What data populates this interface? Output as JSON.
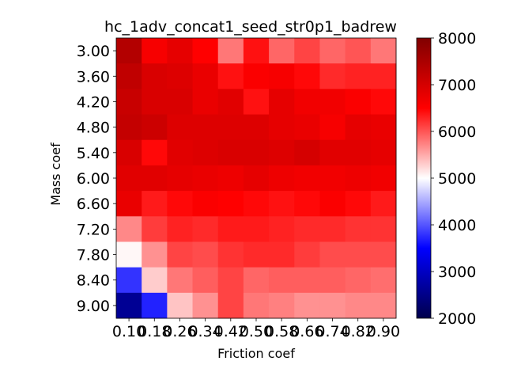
{
  "chart_data": {
    "type": "heatmap",
    "title": "hc_1adv_concat1_seed_str0p1_badrew",
    "xlabel": "Friction coef",
    "ylabel": "Mass coef",
    "x_ticks": [
      "0.10",
      "0.18",
      "0.26",
      "0.34",
      "0.42",
      "0.50",
      "0.58",
      "0.66",
      "0.74",
      "0.82",
      "0.90"
    ],
    "y_ticks": [
      "3.00",
      "3.60",
      "4.20",
      "4.80",
      "5.40",
      "6.00",
      "6.60",
      "7.20",
      "7.80",
      "8.40",
      "9.00"
    ],
    "colorbar": {
      "colormap": "seismic",
      "vmin": 2000,
      "vmax": 8000,
      "ticks": [
        "2000",
        "3000",
        "4000",
        "5000",
        "6000",
        "7000",
        "8000"
      ]
    },
    "values": [
      [
        7400,
        6600,
        6800,
        6500,
        5800,
        6400,
        5900,
        6100,
        5900,
        6000,
        5800
      ],
      [
        7250,
        6950,
        6900,
        6750,
        6400,
        6550,
        6600,
        6450,
        6250,
        6300,
        6300
      ],
      [
        7150,
        6950,
        6950,
        6750,
        6850,
        6400,
        6800,
        6650,
        6650,
        6550,
        6450
      ],
      [
        7200,
        7100,
        6900,
        6900,
        6900,
        6900,
        6800,
        6750,
        6600,
        6800,
        6750
      ],
      [
        6950,
        6450,
        6850,
        6900,
        6950,
        6950,
        6900,
        7000,
        6850,
        6850,
        6800
      ],
      [
        6850,
        6850,
        6800,
        6750,
        6700,
        6800,
        6700,
        6650,
        6650,
        6700,
        6650
      ],
      [
        6750,
        6350,
        6450,
        6550,
        6500,
        6450,
        6400,
        6450,
        6550,
        6450,
        6350
      ],
      [
        5700,
        6150,
        6300,
        6250,
        6350,
        6350,
        6300,
        6250,
        6250,
        6200,
        6200
      ],
      [
        5050,
        5650,
        6100,
        6050,
        6200,
        6250,
        6250,
        6150,
        6050,
        6050,
        6050
      ],
      [
        3800,
        5300,
        5800,
        5950,
        6100,
        5900,
        5950,
        5950,
        5950,
        5900,
        5850
      ],
      [
        2600,
        3700,
        5350,
        5650,
        6100,
        5800,
        5750,
        5650,
        5650,
        5700,
        5700
      ]
    ]
  }
}
